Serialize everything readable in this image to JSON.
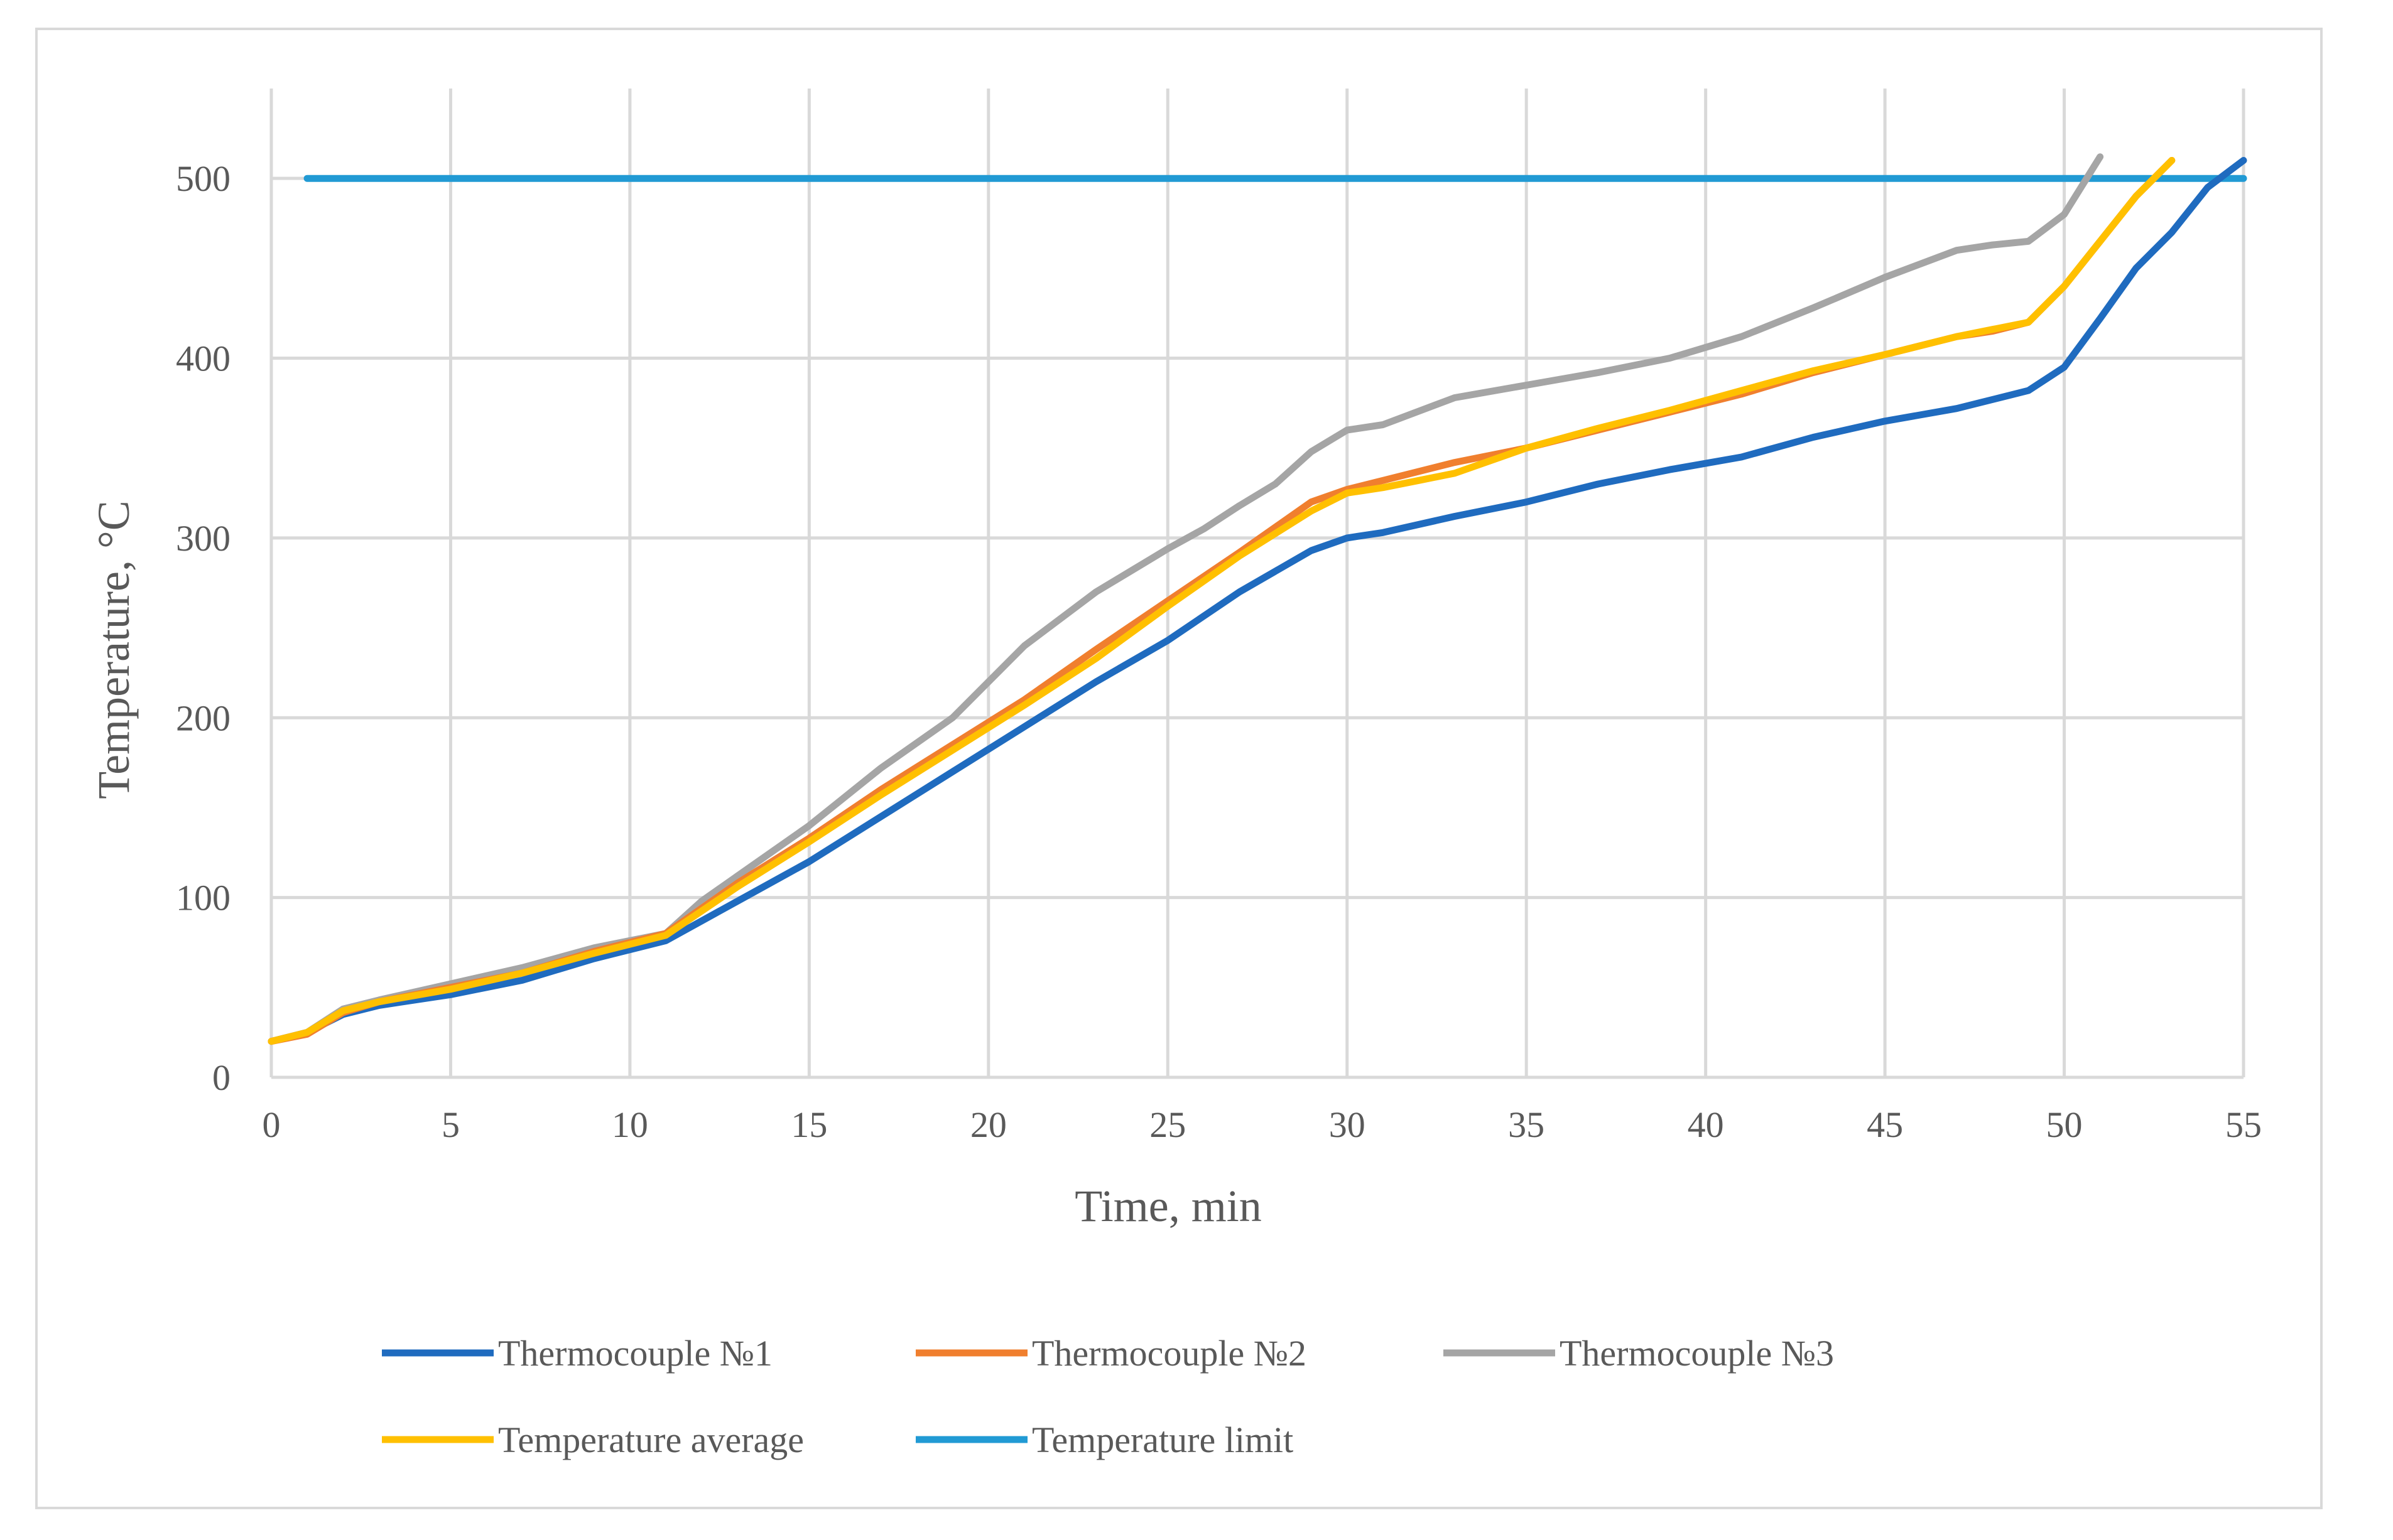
{
  "chart_data": {
    "type": "line",
    "xlabel": "Time, min",
    "ylabel": "Temperature, °C",
    "xlim": [
      0,
      55
    ],
    "ylim": [
      0,
      550
    ],
    "xticks": [
      0,
      5,
      10,
      15,
      20,
      25,
      30,
      35,
      40,
      45,
      50,
      55
    ],
    "yticks": [
      0,
      100,
      200,
      300,
      400,
      500
    ],
    "grid": true,
    "legend_position": "bottom",
    "series": [
      {
        "name": "Thermocouple №1",
        "color": "#1f6bbf",
        "x": [
          0,
          1,
          2,
          3,
          5,
          7,
          9,
          11,
          13,
          15,
          17,
          19,
          21,
          23,
          25,
          27,
          29,
          30,
          31,
          33,
          35,
          37,
          39,
          41,
          43,
          45,
          47,
          49,
          50,
          51,
          52,
          53,
          54,
          55
        ],
        "y": [
          20,
          25,
          35,
          40,
          46,
          54,
          66,
          76,
          98,
          120,
          145,
          170,
          195,
          220,
          243,
          270,
          293,
          300,
          303,
          312,
          320,
          330,
          338,
          345,
          356,
          365,
          372,
          382,
          395,
          422,
          450,
          470,
          495,
          510
        ]
      },
      {
        "name": "Thermocouple №2",
        "color": "#f07f2e",
        "x": [
          0,
          1,
          2,
          3,
          5,
          7,
          9,
          11,
          13,
          15,
          17,
          19,
          21,
          23,
          25,
          27,
          29,
          30,
          31,
          33,
          35,
          37,
          39,
          41,
          43,
          45,
          47,
          48,
          49,
          50,
          51,
          52,
          53
        ],
        "y": [
          20,
          24,
          36,
          42,
          50,
          58,
          70,
          80,
          108,
          133,
          160,
          185,
          210,
          238,
          265,
          292,
          320,
          327,
          332,
          342,
          350,
          360,
          370,
          380,
          392,
          402,
          412,
          415,
          420,
          440,
          465,
          490,
          510
        ]
      },
      {
        "name": "Thermocouple №3",
        "color": "#a5a5a5",
        "x": [
          0,
          1,
          2,
          3,
          5,
          7,
          9,
          11,
          12,
          13,
          15,
          17,
          19,
          20,
          21,
          23,
          24,
          25,
          26,
          27,
          28,
          29,
          30,
          31,
          33,
          35,
          37,
          39,
          41,
          43,
          45,
          47,
          48,
          49,
          50,
          51
        ],
        "y": [
          20,
          25,
          38,
          43,
          52,
          61,
          72,
          80,
          98,
          112,
          140,
          172,
          200,
          220,
          240,
          270,
          282,
          294,
          305,
          318,
          330,
          348,
          360,
          363,
          378,
          385,
          392,
          400,
          412,
          428,
          445,
          460,
          463,
          465,
          480,
          512
        ]
      },
      {
        "name": "Temperature average",
        "color": "#ffc000",
        "x": [
          0,
          1,
          2,
          3,
          5,
          7,
          9,
          11,
          13,
          15,
          17,
          19,
          21,
          23,
          25,
          27,
          29,
          30,
          31,
          32,
          33,
          35,
          37,
          39,
          41,
          43,
          45,
          47,
          48,
          49,
          50,
          51,
          52,
          53
        ],
        "y": [
          20,
          25,
          37,
          42,
          49,
          58,
          69,
          79,
          106,
          131,
          157,
          182,
          207,
          233,
          262,
          290,
          315,
          325,
          328,
          332,
          336,
          350,
          361,
          371,
          382,
          393,
          402,
          412,
          416,
          420,
          440,
          465,
          490,
          510
        ]
      },
      {
        "name": "Temperature limit",
        "color": "#219ad4",
        "x": [
          1,
          55
        ],
        "y": [
          500,
          500
        ]
      }
    ]
  }
}
